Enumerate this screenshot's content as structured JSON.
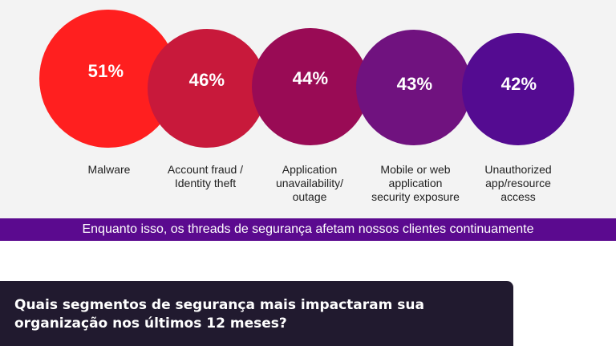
{
  "bubbles": [
    {
      "value": "51%",
      "label": "Malware",
      "color": "#ff1f1f"
    },
    {
      "value": "46%",
      "label": "Account fraud /\nIdentity theft",
      "color": "#c8193b"
    },
    {
      "value": "44%",
      "label": "Application\nunavailability/\noutage",
      "color": "#990b55"
    },
    {
      "value": "43%",
      "label": "Mobile or web\napplication\nsecurity exposure",
      "color": "#70127f"
    },
    {
      "value": "42%",
      "label": "Unauthorized\napp/resource\naccess",
      "color": "#540b91"
    }
  ],
  "banner": {
    "text": "Enquanto isso, os threads de segurança afetam nossos clientes continuamente",
    "color": "#5b0a8f"
  },
  "question": {
    "text": "Quais segmentos de segurança mais impactaram sua organização nos últimos 12 meses?"
  }
}
